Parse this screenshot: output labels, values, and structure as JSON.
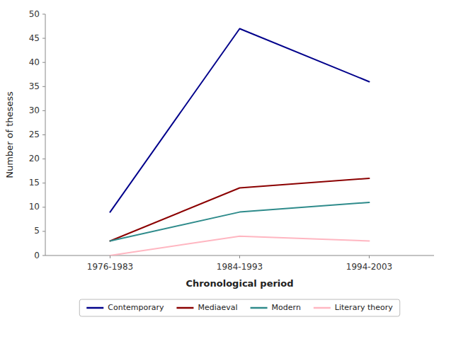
{
  "chart_data": {
    "type": "line",
    "categories": [
      "1976-1983",
      "1984-1993",
      "1994-2003"
    ],
    "series": [
      {
        "name": "Contemporary",
        "color": "#00008B",
        "values": [
          9,
          47,
          36
        ]
      },
      {
        "name": "Mediaeval",
        "color": "#8B0000",
        "values": [
          3,
          14,
          16
        ]
      },
      {
        "name": "Modern",
        "color": "#2E8B8B",
        "values": [
          3,
          9,
          11
        ]
      },
      {
        "name": "Literary theory",
        "color": "#FFB6C1",
        "values": [
          0,
          4,
          3
        ]
      }
    ],
    "xlabel": "Chronological period",
    "ylabel": "Number of thesess",
    "ylim": [
      0,
      50
    ],
    "yticks": [
      0,
      5,
      10,
      15,
      20,
      25,
      30,
      35,
      40,
      45,
      50
    ],
    "grid": false,
    "legend": "bottom"
  }
}
